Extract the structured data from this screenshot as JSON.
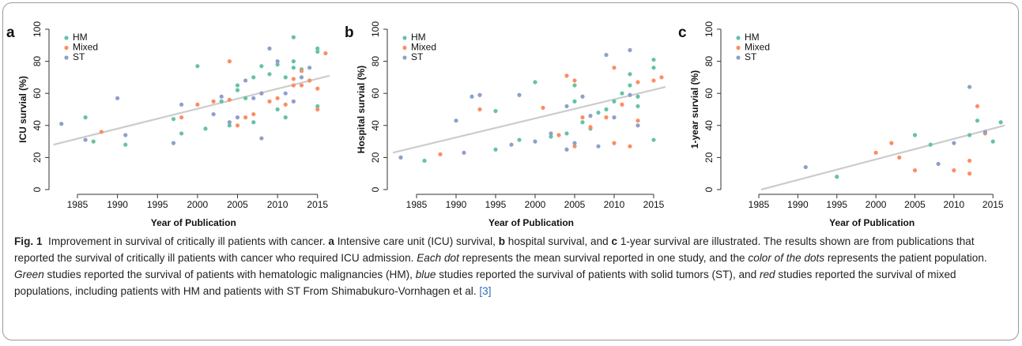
{
  "chart_data": [
    {
      "type": "scatter",
      "panel_label": "a",
      "x_label": "Year of Publication",
      "y_label": "ICU survial (%)",
      "xlim": [
        1982,
        2017
      ],
      "xticks": [
        1985,
        1990,
        1995,
        2000,
        2005,
        2010,
        2015
      ],
      "ylim": [
        0,
        100
      ],
      "yticks": [
        0,
        20,
        40,
        60,
        80,
        100
      ],
      "legend": "top-left",
      "series": [
        {
          "name": "HM",
          "color": "#66c2a5",
          "x": [
            1986,
            1987,
            1991,
            1997,
            1998,
            2000,
            2001,
            2003,
            2004,
            2005,
            2005,
            2006,
            2007,
            2007,
            2008,
            2009,
            2010,
            2010,
            2011,
            2011,
            2012,
            2012,
            2012,
            2013,
            2014,
            2015,
            2015,
            2015
          ],
          "values": [
            45,
            30,
            28,
            44,
            35,
            77,
            38,
            55,
            40,
            62,
            65,
            57,
            70,
            42,
            77,
            72,
            78,
            50,
            45,
            70,
            95,
            76,
            80,
            75,
            68,
            88,
            86,
            52
          ]
        },
        {
          "name": "Mixed",
          "color": "#fc8d62",
          "x": [
            1988,
            1998,
            2000,
            2002,
            2004,
            2004,
            2005,
            2006,
            2007,
            2008,
            2009,
            2010,
            2011,
            2012,
            2012,
            2013,
            2013,
            2014,
            2015,
            2015,
            2016
          ],
          "values": [
            36,
            45,
            53,
            55,
            80,
            56,
            40,
            45,
            47,
            60,
            55,
            57,
            53,
            69,
            65,
            74,
            65,
            68,
            63,
            50,
            85
          ]
        },
        {
          "name": "ST",
          "color": "#8da0cb",
          "x": [
            1983,
            1986,
            1990,
            1991,
            1997,
            1998,
            2002,
            2003,
            2004,
            2005,
            2006,
            2007,
            2008,
            2008,
            2009,
            2010,
            2011,
            2012,
            2013,
            2014
          ],
          "values": [
            41,
            31,
            57,
            34,
            29,
            53,
            47,
            58,
            42,
            45,
            68,
            57,
            32,
            60,
            88,
            80,
            60,
            55,
            70,
            76
          ]
        }
      ],
      "trend": {
        "color": "#cccccc",
        "x": [
          1982,
          2016.5
        ],
        "values": [
          28,
          71
        ]
      }
    },
    {
      "type": "scatter",
      "panel_label": "b",
      "x_label": "Year of Publication",
      "y_label": "Hospital survial (%)",
      "xlim": [
        1982,
        2017
      ],
      "xticks": [
        1985,
        1990,
        1995,
        2000,
        2005,
        2010,
        2015
      ],
      "ylim": [
        0,
        100
      ],
      "yticks": [
        0,
        20,
        40,
        60,
        80,
        100
      ],
      "legend": "top-left",
      "series": [
        {
          "name": "HM",
          "color": "#66c2a5",
          "x": [
            1986,
            1995,
            1995,
            1998,
            2000,
            2002,
            2004,
            2005,
            2005,
            2006,
            2007,
            2008,
            2009,
            2010,
            2011,
            2012,
            2012,
            2013,
            2013,
            2015,
            2015,
            2015
          ],
          "values": [
            18,
            25,
            49,
            31,
            67,
            33,
            35,
            65,
            55,
            42,
            38,
            48,
            50,
            55,
            60,
            72,
            65,
            58,
            52,
            81,
            31,
            76
          ]
        },
        {
          "name": "Mixed",
          "color": "#fc8d62",
          "x": [
            1988,
            1993,
            2001,
            2003,
            2004,
            2005,
            2005,
            2006,
            2007,
            2009,
            2010,
            2010,
            2011,
            2012,
            2013,
            2013,
            2015,
            2016
          ],
          "values": [
            22,
            50,
            51,
            34,
            71,
            68,
            27,
            45,
            39,
            45,
            76,
            29,
            53,
            27,
            67,
            43,
            68,
            70
          ]
        },
        {
          "name": "ST",
          "color": "#8da0cb",
          "x": [
            1983,
            1990,
            1991,
            1992,
            1993,
            1997,
            1998,
            2000,
            2002,
            2004,
            2004,
            2005,
            2006,
            2007,
            2008,
            2009,
            2010,
            2012,
            2012,
            2013
          ],
          "values": [
            20,
            43,
            23,
            58,
            59,
            28,
            59,
            30,
            35,
            52,
            25,
            29,
            58,
            46,
            27,
            84,
            45,
            87,
            59,
            40
          ]
        }
      ],
      "trend": {
        "color": "#cccccc",
        "x": [
          1982,
          2016.5
        ],
        "values": [
          23,
          64
        ]
      }
    },
    {
      "type": "scatter",
      "panel_label": "c",
      "x_label": "Year of Publication",
      "y_label": "1-year survial (%)",
      "xlim": [
        1982,
        2017
      ],
      "xticks": [
        1985,
        1990,
        1995,
        2000,
        2005,
        2010,
        2015
      ],
      "ylim": [
        0,
        100
      ],
      "yticks": [
        0,
        20,
        40,
        60,
        80,
        100
      ],
      "legend": "top-left",
      "series": [
        {
          "name": "HM",
          "color": "#66c2a5",
          "x": [
            1995,
            2005,
            2007,
            2012,
            2013,
            2015,
            2016
          ],
          "values": [
            8,
            34,
            28,
            34,
            43,
            30,
            42
          ]
        },
        {
          "name": "Mixed",
          "color": "#fc8d62",
          "x": [
            2000,
            2002,
            2003,
            2005,
            2010,
            2012,
            2012,
            2013,
            2014
          ],
          "values": [
            23,
            29,
            20,
            12,
            12,
            18,
            10,
            52,
            35
          ]
        },
        {
          "name": "ST",
          "color": "#8da0cb",
          "x": [
            1991,
            2008,
            2010,
            2012,
            2014
          ],
          "values": [
            14,
            16,
            29,
            64,
            36
          ]
        }
      ],
      "trend": {
        "color": "#cccccc",
        "x": [
          1985.3,
          2016.5
        ],
        "values": [
          0,
          40
        ]
      }
    }
  ],
  "caption": {
    "runs": [
      {
        "text": "Fig. 1",
        "style": "bold"
      },
      {
        "text": "  Improvement in survival of critically ill patients with cancer. ",
        "style": "normal"
      },
      {
        "text": "a",
        "style": "bold"
      },
      {
        "text": " Intensive care unit (ICU) survival, ",
        "style": "normal"
      },
      {
        "text": "b",
        "style": "bold"
      },
      {
        "text": " hospital survival, and ",
        "style": "normal"
      },
      {
        "text": "c",
        "style": "bold"
      },
      {
        "text": " 1-year survival are illustrated. The results shown are from publications that reported the survival of critically ill patients with cancer who required ICU admission. ",
        "style": "normal"
      },
      {
        "text": "Each dot",
        "style": "italic"
      },
      {
        "text": " represents the mean survival reported in one study, and the ",
        "style": "normal"
      },
      {
        "text": "color of the dots",
        "style": "italic"
      },
      {
        "text": " represents the patient population. ",
        "style": "normal"
      },
      {
        "text": "Green",
        "style": "italic"
      },
      {
        "text": " studies reported the survival of patients with hematologic malignancies (HM), ",
        "style": "normal"
      },
      {
        "text": "blue",
        "style": "italic"
      },
      {
        "text": " studies reported the survival of patients with solid tumors (ST), and ",
        "style": "normal"
      },
      {
        "text": "red",
        "style": "italic"
      },
      {
        "text": " studies reported the survival of mixed populations, including patients with HM and patients with ST From Shimabukuro-Vornhagen et al. ",
        "style": "normal"
      },
      {
        "text": "[3]",
        "style": "link"
      }
    ]
  }
}
